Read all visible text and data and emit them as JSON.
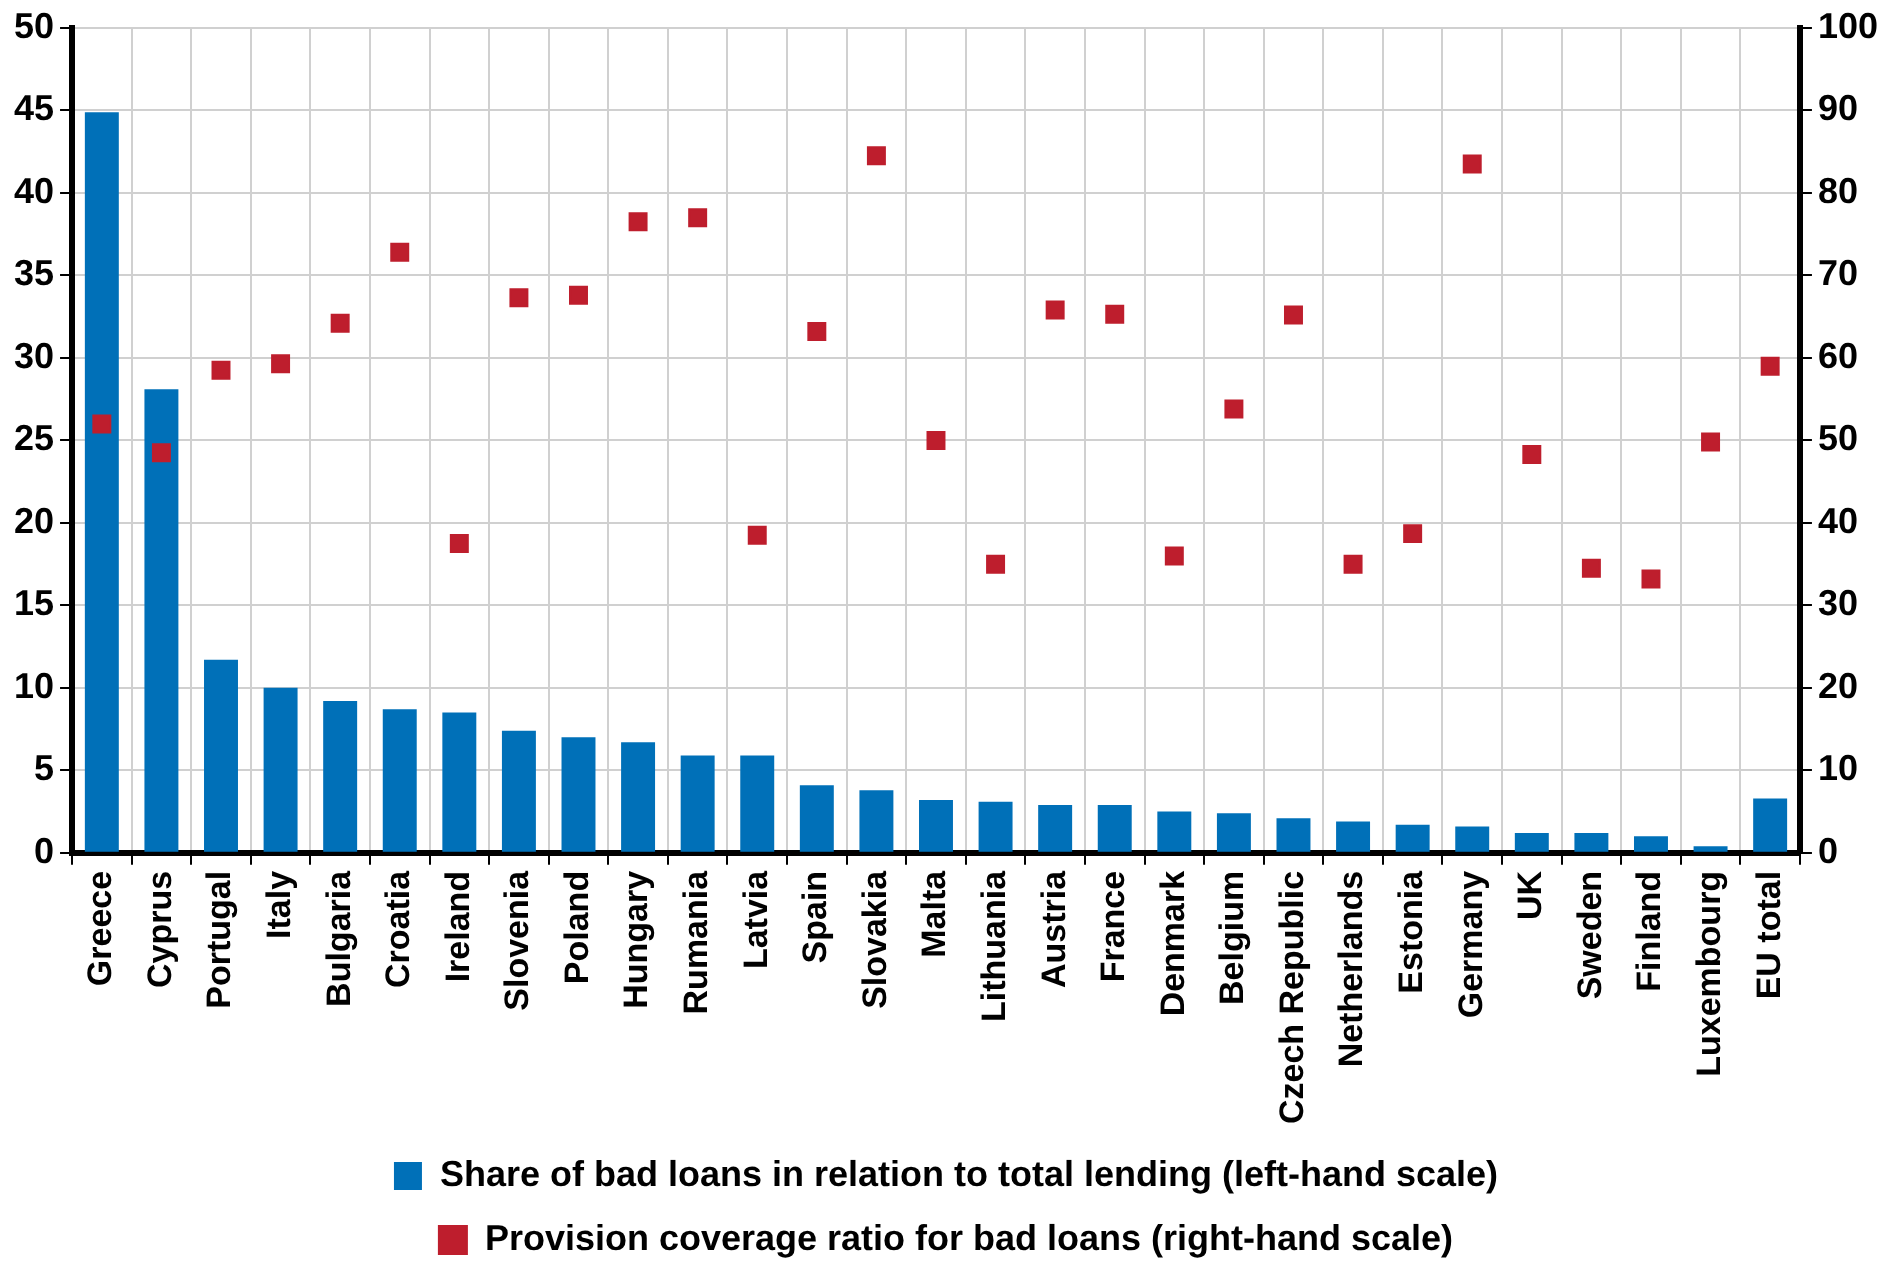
{
  "chart_data": {
    "type": "bar",
    "categories": [
      "Greece",
      "Cyprus",
      "Portugal",
      "Italy",
      "Bulgaria",
      "Croatia",
      "Ireland",
      "Slovenia",
      "Poland",
      "Hungary",
      "Rumania",
      "Latvia",
      "Spain",
      "Slovakia",
      "Malta",
      "Lithuania",
      "Austria",
      "France",
      "Denmark",
      "Belgium",
      "Czech Republic",
      "Netherlands",
      "Estonia",
      "Germany",
      "UK",
      "Sweden",
      "Finland",
      "Luxembourg",
      "EU total"
    ],
    "series": [
      {
        "name": "Share of bad loans in relation to total lending (left-hand scale)",
        "color": "#0070b8",
        "values": [
          44.9,
          28.1,
          11.7,
          10.0,
          9.2,
          8.7,
          8.5,
          7.4,
          7.0,
          6.7,
          5.9,
          5.9,
          4.1,
          3.8,
          3.2,
          3.1,
          2.9,
          2.9,
          2.5,
          2.4,
          2.1,
          1.9,
          1.7,
          1.6,
          1.2,
          1.2,
          1.0,
          0.4,
          3.3
        ]
      },
      {
        "name": "Provision coverage ratio for bad loans (right-hand scale)",
        "type": "scatter",
        "axis": "y2",
        "color": "#be1e2d",
        "marker": "square",
        "values": [
          52,
          48.5,
          58.5,
          59.3,
          64.2,
          72.8,
          37.5,
          67.3,
          67.6,
          76.5,
          77,
          38.5,
          63.2,
          84.5,
          50,
          35,
          65.8,
          65.3,
          36,
          53.8,
          65.2,
          35,
          38.7,
          83.5,
          48.3,
          34.5,
          33.2,
          49.8,
          59
        ]
      }
    ],
    "ylim": [
      0,
      50
    ],
    "yticks": [
      0,
      5,
      10,
      15,
      20,
      25,
      30,
      35,
      40,
      45,
      50
    ],
    "y2lim": [
      0,
      100
    ],
    "y2ticks": [
      0,
      10,
      20,
      30,
      40,
      50,
      60,
      70,
      80,
      90,
      100
    ],
    "grid": true,
    "legend": "bottom"
  }
}
